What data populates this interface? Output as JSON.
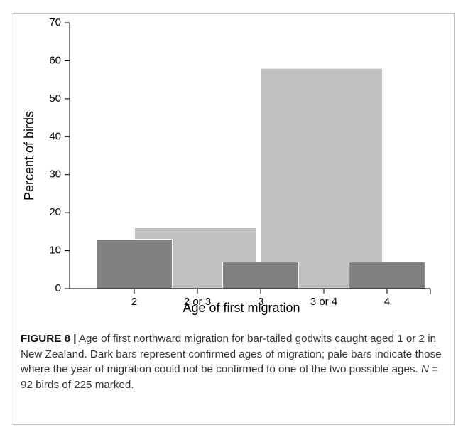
{
  "chart_data": {
    "type": "bar",
    "x_label": "Age of first migration",
    "y_label": "Percent of birds",
    "categories": [
      "2",
      "2 or 3",
      "3",
      "3 or 4",
      "4"
    ],
    "series": [
      {
        "color": "#c0c0c0",
        "values": [
          null,
          16,
          null,
          58,
          null
        ]
      },
      {
        "color": "#808080",
        "values": [
          13,
          null,
          7,
          null,
          7
        ]
      }
    ],
    "ylim": [
      0,
      70
    ],
    "yticks": [
      0,
      10,
      20,
      30,
      40,
      50,
      60,
      70
    ]
  },
  "caption": {
    "label": "FIGURE 8 |",
    "text": " Age of first northward migration for bar-tailed godwits caught aged 1 or 2 in New Zealand. Dark bars represent confirmed ages of migration; pale bars indicate those where the year of migration could not be confirmed to one of the two possible ages. ",
    "n_symbol": "N",
    "n_text": " = 92 birds of 225 marked."
  }
}
